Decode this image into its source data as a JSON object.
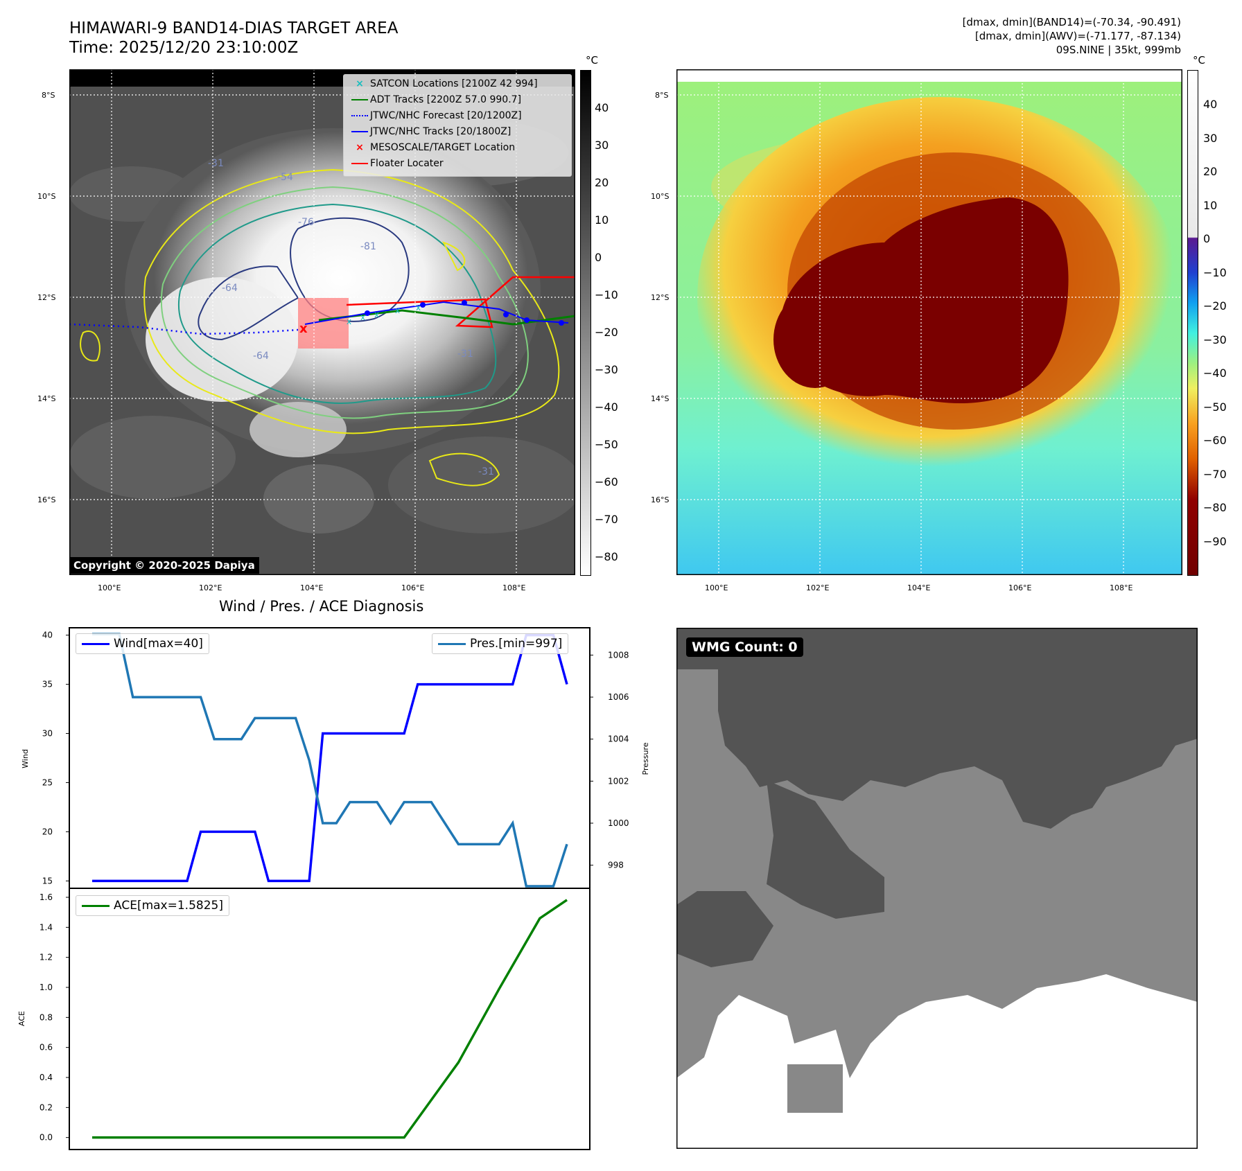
{
  "header": {
    "title_line1": "HIMAWARI-9 BAND14-DIAS TARGET AREA",
    "title_line2": "Time: 2025/12/20 23:10:00Z",
    "info_line1": "[dmax, dmin](BAND14)=(-70.34, -90.491)",
    "info_line2": "[dmax, dmin](AWV)=(-71.177, -87.134)",
    "info_line3": "09S.NINE | 35kt, 999mb"
  },
  "map_left": {
    "lat_labels": [
      "8°S",
      "10°S",
      "12°S",
      "14°S",
      "16°S"
    ],
    "lon_labels": [
      "100°E",
      "102°E",
      "104°E",
      "106°E",
      "108°E"
    ],
    "colorbar_unit": "°C",
    "colorbar_ticks": [
      "40",
      "30",
      "20",
      "10",
      "0",
      "−10",
      "−20",
      "−30",
      "−40",
      "−50",
      "−60",
      "−70",
      "−80"
    ],
    "copyright": "Copyright © 2020-2025 Dapiya",
    "contour_labels": [
      "-31",
      "-54",
      "-76",
      "-81",
      "-64",
      "-64",
      "-31",
      "-31"
    ],
    "legend": [
      {
        "label": "SATCON Locations [2100Z 42 994]",
        "color": "#17bfbf",
        "marker": "x"
      },
      {
        "label": "ADT Tracks [2200Z 57.0 990.7]",
        "color": "#008000",
        "marker": "line"
      },
      {
        "label": "JTWC/NHC Forecast [20/1200Z]",
        "color": "#0000ff",
        "marker": "dotted"
      },
      {
        "label": "JTWC/NHC Tracks [20/1800Z]",
        "color": "#0000ff",
        "marker": "line-dot"
      },
      {
        "label": "MESOSCALE/TARGET Location",
        "color": "#ff0000",
        "marker": "x"
      },
      {
        "label": "Floater Locater",
        "color": "#ff0000",
        "marker": "line"
      }
    ]
  },
  "map_right": {
    "lat_labels": [
      "8°S",
      "10°S",
      "12°S",
      "14°S",
      "16°S"
    ],
    "lon_labels": [
      "100°E",
      "102°E",
      "104°E",
      "106°E",
      "108°E"
    ],
    "colorbar_unit": "°C",
    "colorbar_ticks": [
      "40",
      "30",
      "20",
      "10",
      "0",
      "−10",
      "−20",
      "−30",
      "−40",
      "−50",
      "−60",
      "−70",
      "−80",
      "−90"
    ]
  },
  "diag_title": "Wind / Pres. / ACE Diagnosis",
  "wmg_label": "WMG Count: 0",
  "chart_data": [
    {
      "type": "line",
      "title": "Wind / Pres. / ACE Diagnosis",
      "ylabel": "Wind",
      "y2label": "Pressure",
      "ylim": [
        14.25,
        40.75
      ],
      "y2lim": [
        996.9,
        1009.3
      ],
      "yticks": [
        15,
        20,
        25,
        30,
        35,
        40
      ],
      "y2ticks": [
        998,
        1000,
        1002,
        1004,
        1006,
        1008
      ],
      "series": [
        {
          "name": "Wind[max=40]",
          "color": "#0000ff",
          "axis": "left",
          "x": [
            0,
            7,
            8,
            12,
            13,
            16,
            17,
            23,
            24,
            31,
            32,
            34,
            35
          ],
          "values": [
            15,
            15,
            20,
            20,
            15,
            15,
            30,
            30,
            35,
            35,
            40,
            40,
            35
          ]
        },
        {
          "name": "Pres.[min=997]",
          "color": "#1f77b4",
          "axis": "right",
          "x": [
            0,
            2,
            3,
            8,
            9,
            11,
            12,
            15,
            16,
            17,
            18,
            19,
            20,
            21,
            22,
            23,
            24,
            25,
            27,
            28,
            30,
            31,
            32,
            34,
            35
          ],
          "values": [
            1009,
            1009,
            1006,
            1006,
            1004,
            1004,
            1005,
            1005,
            1003,
            1000,
            1000,
            1001,
            1001,
            1001,
            1000,
            1001,
            1001,
            1001,
            999,
            999,
            999,
            1000,
            997,
            997,
            999
          ]
        }
      ]
    },
    {
      "type": "line",
      "ylabel": "ACE",
      "ylim": [
        -0.08,
        1.66
      ],
      "yticks": [
        "0.0",
        "0.2",
        "0.4",
        "0.6",
        "0.8",
        "1.0",
        "1.2",
        "1.4",
        "1.6"
      ],
      "series": [
        {
          "name": "ACE[max=1.5825]",
          "color": "#008000",
          "x": [
            0,
            23,
            27,
            30,
            33,
            35
          ],
          "values": [
            0,
            0,
            0.5,
            0.99,
            1.46,
            1.5825
          ]
        }
      ]
    }
  ]
}
